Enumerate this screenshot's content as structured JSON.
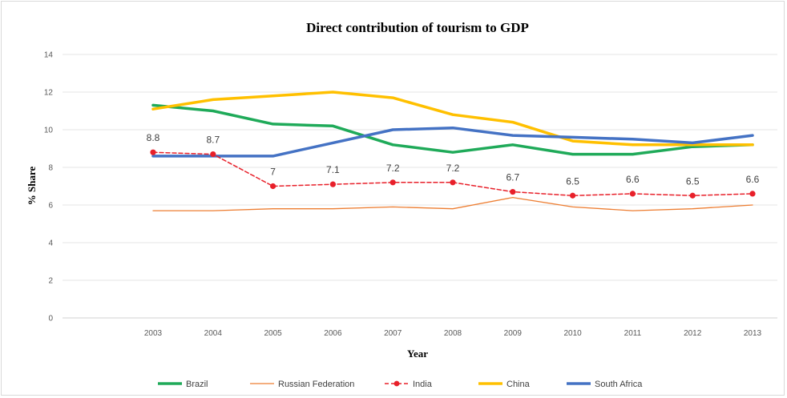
{
  "chart_data": {
    "type": "line",
    "title": "Direct contribution of tourism to GDP",
    "xlabel": "Year",
    "ylabel": "% Share",
    "ylim": [
      0,
      14
    ],
    "yticks": [
      0,
      2,
      4,
      6,
      8,
      10,
      12,
      14
    ],
    "grid": true,
    "legend_position": "bottom",
    "categories": [
      "2003",
      "2004",
      "2005",
      "2006",
      "2007",
      "2008",
      "2009",
      "2010",
      "2011",
      "2012",
      "2013"
    ],
    "series": [
      {
        "name": "Brazil",
        "color": "#1faa59",
        "style": "solid-thick",
        "values": [
          11.3,
          11.0,
          10.3,
          10.2,
          9.2,
          8.8,
          9.2,
          8.7,
          8.7,
          9.1,
          9.2
        ]
      },
      {
        "name": "Russian Federation",
        "color": "#ed7d31",
        "style": "solid-thin",
        "values": [
          5.7,
          5.7,
          5.8,
          5.8,
          5.9,
          5.8,
          6.4,
          5.9,
          5.7,
          5.8,
          6.0
        ]
      },
      {
        "name": "India",
        "color": "#e8202a",
        "style": "dashed-markers",
        "values": [
          8.8,
          8.7,
          7.0,
          7.1,
          7.2,
          7.2,
          6.7,
          6.5,
          6.6,
          6.5,
          6.6
        ],
        "data_labels": [
          "8.8",
          "8.7",
          "7",
          "7.1",
          "7.2",
          "7.2",
          "6.7",
          "6.5",
          "6.6",
          "6.5",
          "6.6"
        ]
      },
      {
        "name": "China",
        "color": "#ffc000",
        "style": "solid-thick",
        "values": [
          11.1,
          11.6,
          11.8,
          12.0,
          11.7,
          10.8,
          10.4,
          9.4,
          9.2,
          9.2,
          9.2
        ]
      },
      {
        "name": "South Africa",
        "color": "#4472c4",
        "style": "solid-thick",
        "values": [
          8.6,
          8.6,
          8.6,
          9.3,
          10.0,
          10.1,
          9.7,
          9.6,
          9.5,
          9.3,
          9.7
        ]
      }
    ]
  }
}
